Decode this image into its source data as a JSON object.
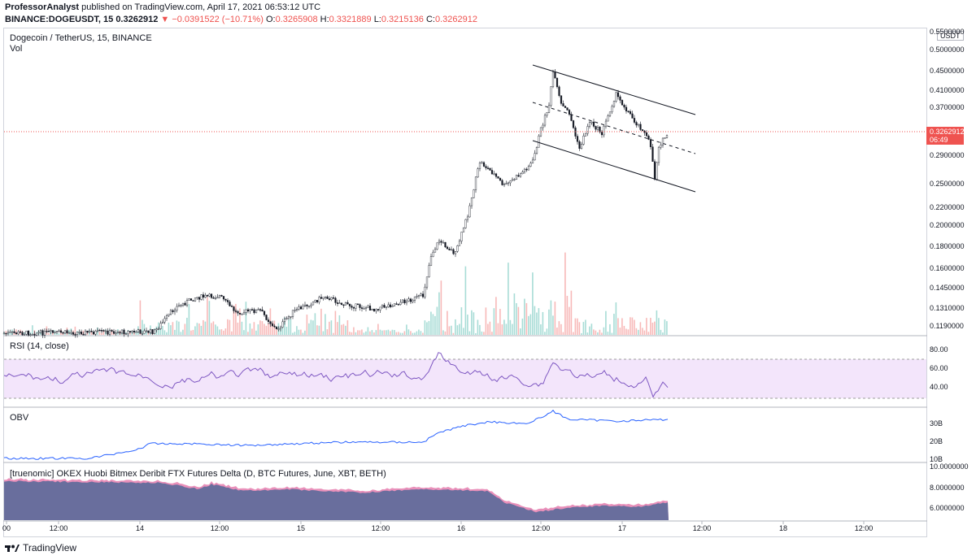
{
  "header": {
    "author": "ProfessorAnalyst",
    "published_text": " published on TradingView.com, April 17, 2021 06:53:12 UTC",
    "symbol_line": "BINANCE:DOGEUSDT, 15",
    "last": "0.3262912",
    "change": "−0.0391522 (−10.71%)",
    "o_label": "O:",
    "o_value": "0.3265908",
    "h_label": "H:",
    "h_value": "0.3321889",
    "l_label": "L:",
    "l_value": "0.3215136",
    "c_label": "C:",
    "c_value": "0.3262912"
  },
  "price_pane": {
    "title": "Dogecoin / TetherUS, 15, BINANCE",
    "vol_label": "Vol",
    "currency_button": "USDT",
    "price_badge": "0.3262912",
    "countdown": "06:49",
    "y_ticks": [
      "0.5500000",
      "0.5000000",
      "0.4500000",
      "0.4100000",
      "0.3700000",
      "0.2900000",
      "0.2500000",
      "0.2200000",
      "0.2000000",
      "0.1800000",
      "0.1600000",
      "0.1450000",
      "0.1310000",
      "0.1190000"
    ]
  },
  "rsi_pane": {
    "title": "RSI (14, close)",
    "y_ticks": [
      "80.00",
      "60.00",
      "40.00"
    ]
  },
  "obv_pane": {
    "title": "OBV",
    "y_ticks": [
      "30B",
      "20B",
      "10B"
    ]
  },
  "delta_pane": {
    "title": "[truenomic] OKEX Huobi Bitmex Deribit FTX Futures Delta (D, BTC Futures, June, XBT, BETH)",
    "y_ticks": [
      "10.0000000",
      "8.0000000",
      "6.0000000"
    ]
  },
  "x_axis": {
    "ticks": [
      "00",
      "12:00",
      "14",
      "12:00",
      "15",
      "12:00",
      "16",
      "12:00",
      "17",
      "12:00",
      "18",
      "12:00"
    ]
  },
  "footer": {
    "brand": "TradingView"
  },
  "colors": {
    "up": "#26a69a",
    "down": "#ef5350",
    "rsi_line": "#7e57c2",
    "rsi_band": "#f3e5fb",
    "obv_line": "#2962ff",
    "area_blue": "#5b6a9a",
    "area_pink": "#e57cae"
  },
  "chart_data": {
    "type": "candlestick",
    "symbol": "BINANCE:DOGEUSDT",
    "interval": "15",
    "last_price": 0.3262912,
    "ohlc_last": {
      "open": 0.3265908,
      "high": 0.3321889,
      "low": 0.3215136,
      "close": 0.3262912
    },
    "approx_close_path": [
      {
        "x": "14 00:00",
        "y": 0.119
      },
      {
        "x": "14 12:00",
        "y": 0.142
      },
      {
        "x": "15 00:00",
        "y": 0.127
      },
      {
        "x": "15 12:00",
        "y": 0.134
      },
      {
        "x": "16 00:00",
        "y": 0.2
      },
      {
        "x": "16 06:00",
        "y": 0.29
      },
      {
        "x": "16 12:00",
        "y": 0.37
      },
      {
        "x": "16 13:00",
        "y": 0.45
      },
      {
        "x": "17 00:00",
        "y": 0.38
      },
      {
        "x": "17 05:00",
        "y": 0.26
      },
      {
        "x": "17 06:53",
        "y": 0.3262912
      }
    ],
    "rsi_levels": [
      80,
      60,
      40
    ]
  }
}
